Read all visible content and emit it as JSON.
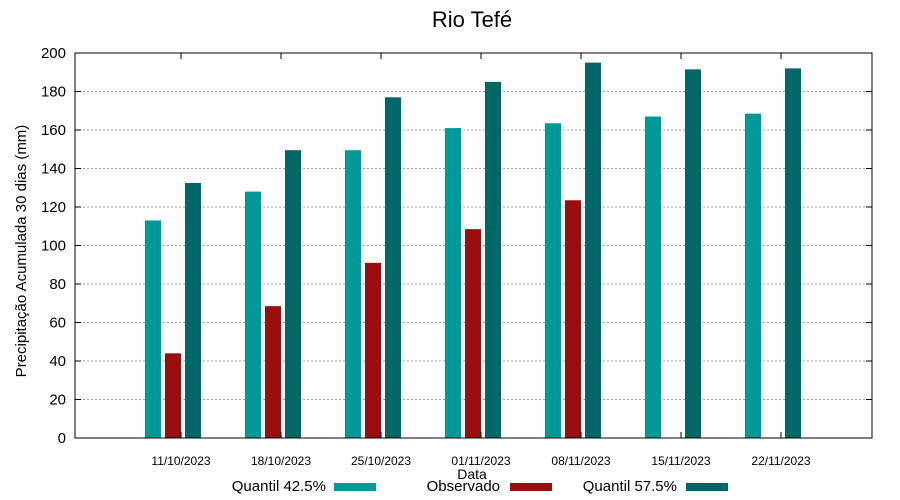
{
  "chart_data": {
    "type": "bar",
    "title": "Rio Tefé",
    "xlabel": "Data",
    "ylabel": "Precipitação Acumulada 30 dias (mm)",
    "ylim": [
      0,
      200
    ],
    "yticks": [
      0,
      20,
      40,
      60,
      80,
      100,
      120,
      140,
      160,
      180,
      200
    ],
    "grid": true,
    "legend_position": "bottom",
    "categories": [
      "11/10/2023",
      "18/10/2023",
      "25/10/2023",
      "01/11/2023",
      "08/11/2023",
      "15/11/2023",
      "22/11/2023"
    ],
    "series": [
      {
        "name": "Quantil 42.5%",
        "color": "#009999",
        "values": [
          113,
          128,
          149.5,
          161,
          163.5,
          167,
          168.5
        ]
      },
      {
        "name": "Observado",
        "color": "#990f0f",
        "values": [
          44,
          68.5,
          91,
          108.5,
          123.5,
          null,
          null
        ]
      },
      {
        "name": "Quantil 57.5%",
        "color": "#006666",
        "values": [
          132.5,
          149.5,
          177,
          185,
          195,
          191.5,
          192
        ]
      }
    ]
  }
}
